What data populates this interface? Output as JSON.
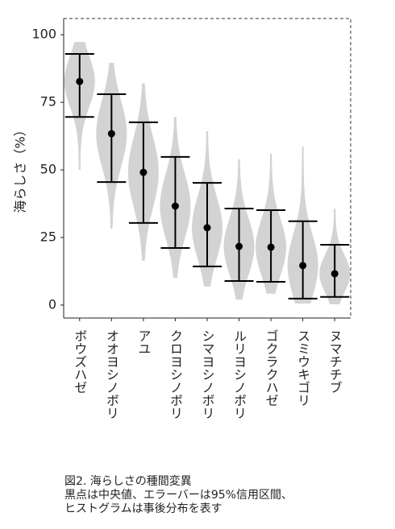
{
  "chart_data": {
    "type": "violin",
    "ylabel": "海らしさ（%）",
    "categories": [
      "ボウズハゼ",
      "オオヨシノボリ",
      "アユ",
      "クロヨシノボリ",
      "シマヨシノボリ",
      "ルリヨシノボリ",
      "ゴクラクハゼ",
      "スミウキゴリ",
      "ヌマチチブ"
    ],
    "medians": [
      82.7,
      63.4,
      49.1,
      36.6,
      28.6,
      21.7,
      21.4,
      14.6,
      11.6
    ],
    "ci_lower": [
      69.6,
      45.5,
      30.4,
      21.1,
      14.3,
      8.9,
      8.6,
      2.4,
      3.0
    ],
    "ci_upper": [
      92.9,
      78.0,
      67.6,
      54.8,
      45.2,
      35.7,
      35.1,
      31.0,
      22.3
    ],
    "range_min": [
      50.0,
      28.3,
      16.4,
      10.0,
      6.8,
      2.0,
      4.2,
      0.6,
      0.3
    ],
    "range_max": [
      97.3,
      89.6,
      82.0,
      69.6,
      64.3,
      53.9,
      56.0,
      58.6,
      35.7
    ],
    "violin_color": "#d3d3d3",
    "point_color": "#000000",
    "ylim": [
      -4.8,
      106
    ],
    "yticks": [
      0,
      25,
      50,
      75,
      100
    ]
  },
  "caption": [
    "図2. 海らしさの種間変異",
    "黒点は中央値、エラーバーは95%信用区間、",
    "ヒストグラムは事後分布を表す"
  ]
}
